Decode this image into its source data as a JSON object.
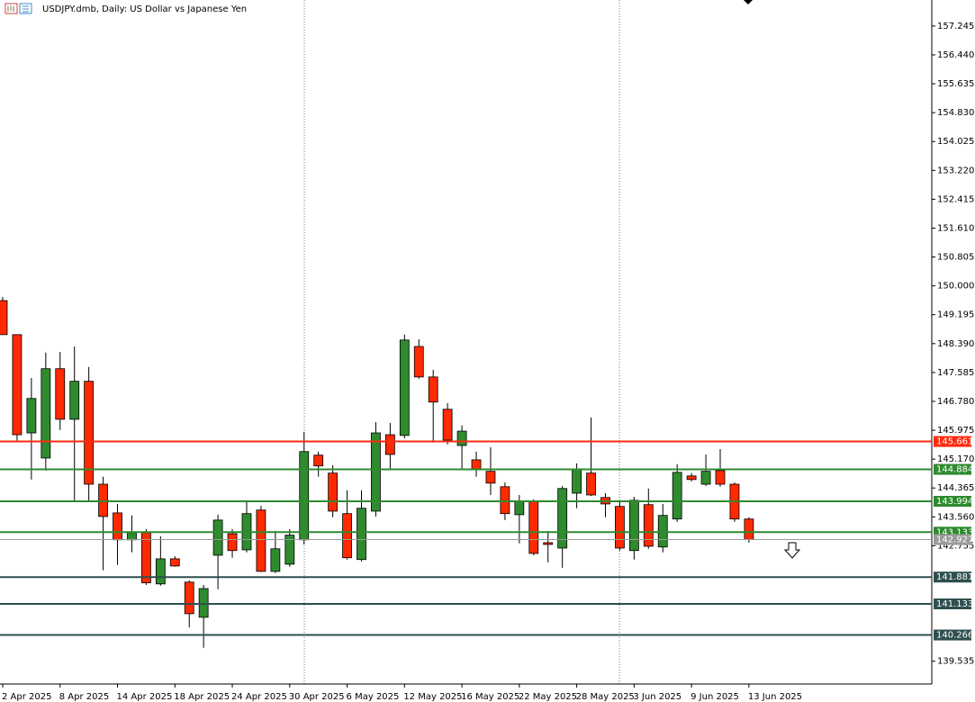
{
  "chart_data": {
    "type": "candlestick",
    "title": "USDJPY.dmb, Daily:  US Dollar vs Japanese Yen",
    "categories": [
      "2 Apr 2025",
      null,
      null,
      null,
      "8 Apr 2025",
      null,
      null,
      null,
      "14 Apr 2025",
      null,
      null,
      null,
      "18 Apr 2025",
      null,
      null,
      null,
      "24 Apr 2025",
      null,
      null,
      null,
      "30 Apr 2025",
      null,
      null,
      null,
      "6 May 2025",
      null,
      null,
      null,
      "12 May 2025",
      null,
      null,
      null,
      "16 May 2025",
      null,
      null,
      null,
      "22 May 2025",
      null,
      null,
      null,
      "28 May 2025",
      null,
      null,
      null,
      "3 Jun 2025",
      null,
      null,
      null,
      "9 Jun 2025",
      null,
      null,
      null,
      "13 Jun 2025"
    ],
    "open": [
      149.59,
      148.64,
      145.9,
      145.2,
      147.69,
      146.28,
      147.34,
      144.47,
      143.67,
      142.92,
      143.12,
      141.69,
      142.39,
      141.74,
      140.76,
      142.49,
      143.09,
      142.64,
      143.75,
      142.04,
      142.24,
      142.92,
      145.28,
      144.78,
      143.65,
      142.37,
      143.72,
      145.85,
      145.83,
      148.31,
      147.46,
      146.56,
      145.55,
      145.15,
      144.83,
      144.4,
      143.62,
      144.0,
      142.84,
      142.69,
      144.22,
      144.78,
      144.1,
      143.85,
      142.62,
      143.9,
      142.72,
      143.5,
      144.7,
      144.47,
      144.85,
      144.47,
      143.5
    ],
    "high": [
      149.69,
      148.64,
      147.43,
      148.14,
      148.16,
      148.31,
      147.74,
      144.68,
      143.92,
      143.6,
      143.22,
      143.02,
      142.46,
      141.79,
      141.66,
      143.62,
      143.22,
      143.99,
      143.87,
      143.17,
      143.22,
      145.93,
      145.38,
      145.0,
      144.3,
      144.3,
      146.2,
      146.18,
      148.64,
      148.51,
      147.66,
      146.73,
      146.11,
      145.38,
      145.5,
      144.52,
      144.17,
      144.05,
      143.17,
      144.42,
      145.05,
      146.33,
      144.22,
      144.02,
      144.12,
      144.35,
      143.92,
      145.03,
      144.78,
      145.3,
      145.45,
      144.52,
      143.55
    ],
    "low": [
      148.64,
      145.68,
      144.6,
      144.85,
      145.98,
      144.02,
      144.02,
      142.07,
      142.22,
      142.57,
      141.66,
      141.64,
      142.17,
      140.48,
      139.91,
      141.54,
      142.42,
      142.57,
      142.02,
      141.99,
      142.17,
      142.79,
      144.68,
      143.55,
      142.37,
      142.32,
      143.57,
      144.88,
      145.75,
      147.41,
      145.63,
      145.58,
      144.88,
      144.68,
      144.17,
      143.47,
      142.82,
      142.49,
      142.29,
      142.14,
      143.8,
      144.14,
      143.55,
      142.62,
      142.37,
      142.67,
      142.57,
      143.42,
      144.55,
      144.42,
      144.4,
      143.42,
      142.84
    ],
    "close": [
      148.64,
      145.85,
      146.86,
      147.69,
      146.28,
      147.34,
      144.47,
      143.57,
      142.92,
      143.12,
      141.72,
      142.39,
      142.19,
      140.86,
      141.56,
      143.47,
      142.62,
      143.65,
      142.04,
      142.67,
      143.05,
      145.38,
      144.98,
      143.72,
      142.42,
      143.8,
      145.9,
      145.3,
      148.49,
      147.46,
      146.76,
      145.7,
      145.95,
      144.9,
      144.5,
      143.65,
      144.0,
      142.54,
      142.79,
      144.35,
      144.9,
      144.17,
      143.92,
      142.69,
      144.02,
      142.74,
      143.6,
      144.8,
      144.6,
      144.83,
      144.47,
      143.5,
      142.927
    ],
    "colors": {
      "up": "#2e8b2e",
      "down": "#ff2a00"
    },
    "ylim": [
      138.9,
      157.97
    ],
    "yticks": [
      157.245,
      {
        "value": 156.44,
        "label": "156.440"
      },
      155.635,
      {
        "value": 154.83,
        "label": "154.830"
      },
      154.025,
      {
        "value": 153.22,
        "label": "153.220"
      },
      152.415,
      {
        "value": 151.61,
        "label": "151.610"
      },
      150.805,
      {
        "value": 150,
        "label": "150.000"
      },
      149.195,
      {
        "value": 148.39,
        "label": "148.390"
      },
      147.585,
      {
        "value": 146.78,
        "label": "146.780"
      },
      145.975,
      {
        "value": 145.17,
        "label": "145.170"
      },
      144.365,
      {
        "value": 143.56,
        "label": "143.560"
      },
      142.755,
      139.535
    ],
    "levels": [
      {
        "value": 145.661,
        "color": "#ff2a0e"
      },
      {
        "value": 144.884,
        "color": "#2e8b2e"
      },
      {
        "value": 143.994,
        "color": "#2e8b2e"
      },
      {
        "value": 143.133,
        "color": "#2e8b2e"
      },
      {
        "value": 142.927,
        "color": "#9a9a9a"
      },
      {
        "value": 141.881,
        "color": "#2f4f4f"
      },
      {
        "value": 141.133,
        "color": "#2f4f4f"
      },
      {
        "value": 140.266,
        "color": "#2f4f4f"
      }
    ]
  }
}
